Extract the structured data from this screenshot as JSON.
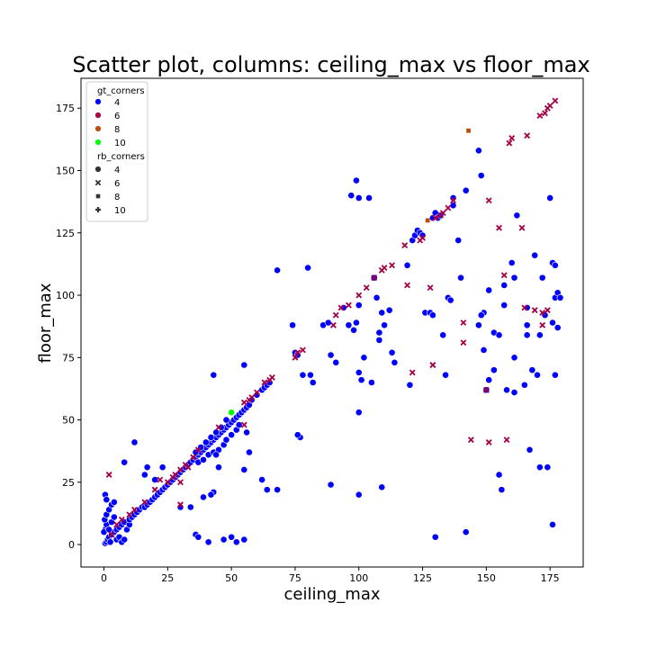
{
  "chart_data": {
    "type": "scatter",
    "title": "Scatter plot, columns: ceiling_max vs floor_max",
    "xlabel": "ceiling_max",
    "ylabel": "floor_max",
    "xlim": [
      -9,
      188
    ],
    "ylim": [
      -9,
      187
    ],
    "xticks": [
      0,
      25,
      50,
      75,
      100,
      125,
      150,
      175
    ],
    "yticks": [
      0,
      25,
      50,
      75,
      100,
      125,
      150,
      175
    ],
    "grid": false,
    "legend": {
      "placement": "top-left",
      "hue_title": "gt_corners",
      "hue_entries": [
        {
          "label": "4",
          "color": "#0000ff"
        },
        {
          "label": "6",
          "color": "#a50045"
        },
        {
          "label": "8",
          "color": "#b8500f"
        },
        {
          "label": "10",
          "color": "#00ff00"
        }
      ],
      "style_title": "rb_corners",
      "style_entries": [
        {
          "label": "4",
          "marker": "circle"
        },
        {
          "label": "6",
          "marker": "x"
        },
        {
          "label": "8",
          "marker": "square"
        },
        {
          "label": "10",
          "marker": "plus"
        }
      ]
    },
    "series": [
      {
        "name": "4",
        "gt_corners": "4",
        "rb_corners": "4",
        "color": "#0000ff",
        "marker": "circle",
        "points": [
          [
            0.5,
            0.5
          ],
          [
            1,
            1
          ],
          [
            1.5,
            2
          ],
          [
            2,
            3
          ],
          [
            2.5,
            1
          ],
          [
            3,
            4
          ],
          [
            0.5,
            6
          ],
          [
            1,
            8
          ],
          [
            0.3,
            10
          ],
          [
            1,
            12
          ],
          [
            2,
            14
          ],
          [
            3,
            16
          ],
          [
            4,
            17
          ],
          [
            0.5,
            20
          ],
          [
            1,
            18
          ],
          [
            0,
            5
          ],
          [
            4,
            5
          ],
          [
            5,
            6
          ],
          [
            6,
            7
          ],
          [
            7,
            8
          ],
          [
            8,
            9
          ],
          [
            5,
            2
          ],
          [
            6,
            3
          ],
          [
            7,
            1
          ],
          [
            8,
            2
          ],
          [
            3,
            9
          ],
          [
            4,
            11
          ],
          [
            2,
            6
          ],
          [
            9,
            6
          ],
          [
            10,
            8
          ],
          [
            10,
            10
          ],
          [
            11,
            11
          ],
          [
            12,
            12
          ],
          [
            13,
            13
          ],
          [
            14,
            14
          ],
          [
            15,
            15
          ],
          [
            16,
            15
          ],
          [
            17,
            16
          ],
          [
            18,
            17
          ],
          [
            19,
            18
          ],
          [
            20,
            19
          ],
          [
            21,
            20
          ],
          [
            22,
            21
          ],
          [
            23,
            22
          ],
          [
            24,
            23
          ],
          [
            25,
            24
          ],
          [
            26,
            25
          ],
          [
            27,
            26
          ],
          [
            28,
            27
          ],
          [
            29,
            28
          ],
          [
            30,
            29
          ],
          [
            31,
            30
          ],
          [
            32,
            31
          ],
          [
            33,
            32
          ],
          [
            34,
            33
          ],
          [
            35,
            34
          ],
          [
            36,
            35
          ],
          [
            37,
            36
          ],
          [
            38,
            37
          ],
          [
            39,
            38
          ],
          [
            40,
            39
          ],
          [
            41,
            40
          ],
          [
            42,
            41
          ],
          [
            43,
            42
          ],
          [
            44,
            43
          ],
          [
            45,
            44
          ],
          [
            46,
            45
          ],
          [
            47,
            46
          ],
          [
            48,
            47
          ],
          [
            49,
            48
          ],
          [
            50,
            49
          ],
          [
            51,
            50
          ],
          [
            52,
            51
          ],
          [
            53,
            52
          ],
          [
            54,
            53
          ],
          [
            55,
            54
          ],
          [
            56,
            55
          ],
          [
            57,
            56
          ],
          [
            36,
            37
          ],
          [
            38,
            39
          ],
          [
            40,
            41
          ],
          [
            42,
            43
          ],
          [
            44,
            45
          ],
          [
            46,
            47
          ],
          [
            48,
            50
          ],
          [
            37,
            33
          ],
          [
            39,
            34
          ],
          [
            41,
            36
          ],
          [
            43,
            37
          ],
          [
            45,
            38
          ],
          [
            47,
            40
          ],
          [
            48,
            42
          ],
          [
            50,
            44
          ],
          [
            52,
            46
          ],
          [
            53,
            48
          ],
          [
            58,
            58
          ],
          [
            60,
            60
          ],
          [
            62,
            62
          ],
          [
            63,
            63
          ],
          [
            64,
            64
          ],
          [
            65,
            65
          ],
          [
            12,
            41
          ],
          [
            8,
            33
          ],
          [
            17,
            31
          ],
          [
            23,
            31
          ],
          [
            16,
            28
          ],
          [
            20,
            26
          ],
          [
            30,
            15
          ],
          [
            34,
            15
          ],
          [
            36,
            4
          ],
          [
            37,
            3
          ],
          [
            41,
            1
          ],
          [
            43,
            21
          ],
          [
            39,
            19
          ],
          [
            42,
            20
          ],
          [
            47,
            2
          ],
          [
            50,
            3
          ],
          [
            52,
            1
          ],
          [
            43,
            68
          ],
          [
            44,
            36
          ],
          [
            45,
            31
          ],
          [
            55,
            72
          ],
          [
            55,
            30
          ],
          [
            56,
            45
          ],
          [
            57,
            37
          ],
          [
            62,
            26
          ],
          [
            64,
            22
          ],
          [
            68,
            22
          ],
          [
            55,
            2
          ],
          [
            68,
            110
          ],
          [
            74,
            88
          ],
          [
            75,
            77
          ],
          [
            76,
            76
          ],
          [
            77,
            43
          ],
          [
            78,
            68
          ],
          [
            81,
            68
          ],
          [
            80,
            111
          ],
          [
            82,
            65
          ],
          [
            76,
            44
          ],
          [
            86,
            88
          ],
          [
            88,
            89
          ],
          [
            89,
            76
          ],
          [
            91,
            73
          ],
          [
            94,
            95
          ],
          [
            96,
            88
          ],
          [
            98,
            86
          ],
          [
            99,
            89
          ],
          [
            100,
            53
          ],
          [
            100,
            96
          ],
          [
            97,
            140
          ],
          [
            99,
            146
          ],
          [
            100,
            139
          ],
          [
            104,
            139
          ],
          [
            100,
            69
          ],
          [
            101,
            66
          ],
          [
            102,
            75
          ],
          [
            105,
            65
          ],
          [
            106,
            107
          ],
          [
            107,
            99
          ],
          [
            108,
            85
          ],
          [
            108,
            82
          ],
          [
            109,
            93
          ],
          [
            110,
            88
          ],
          [
            112,
            94
          ],
          [
            113,
            77
          ],
          [
            114,
            73
          ],
          [
            119,
            112
          ],
          [
            120,
            64
          ],
          [
            121,
            122
          ],
          [
            122,
            124
          ],
          [
            123,
            126
          ],
          [
            124,
            125
          ],
          [
            125,
            124
          ],
          [
            126,
            93
          ],
          [
            128,
            93
          ],
          [
            129,
            92
          ],
          [
            129,
            131
          ],
          [
            130,
            133
          ],
          [
            131,
            131
          ],
          [
            132,
            132
          ],
          [
            133,
            84
          ],
          [
            134,
            68
          ],
          [
            135,
            99
          ],
          [
            136,
            98
          ],
          [
            137,
            136
          ],
          [
            137,
            139
          ],
          [
            139,
            122
          ],
          [
            140,
            107
          ],
          [
            142,
            142
          ],
          [
            147,
            158
          ],
          [
            148,
            148
          ],
          [
            150,
            62
          ],
          [
            151,
            66
          ],
          [
            153,
            85
          ],
          [
            149,
            93
          ],
          [
            149,
            78
          ],
          [
            147,
            88
          ],
          [
            148,
            92
          ],
          [
            151,
            102
          ],
          [
            153,
            70
          ],
          [
            155,
            84
          ],
          [
            157,
            104
          ],
          [
            157,
            96
          ],
          [
            158,
            62
          ],
          [
            160,
            113
          ],
          [
            161,
            107
          ],
          [
            161,
            61
          ],
          [
            161,
            75
          ],
          [
            162,
            132
          ],
          [
            165,
            64
          ],
          [
            166,
            95
          ],
          [
            166,
            84
          ],
          [
            166,
            88
          ],
          [
            168,
            70
          ],
          [
            169,
            116
          ],
          [
            170,
            68
          ],
          [
            171,
            84
          ],
          [
            172,
            107
          ],
          [
            173,
            92
          ],
          [
            175,
            139
          ],
          [
            176,
            113
          ],
          [
            176,
            89
          ],
          [
            177,
            68
          ],
          [
            177,
            99
          ],
          [
            177,
            112
          ],
          [
            178,
            87
          ],
          [
            178,
            101
          ],
          [
            179,
            99
          ],
          [
            174,
            31
          ],
          [
            171,
            31
          ],
          [
            167,
            38
          ],
          [
            176,
            8
          ],
          [
            156,
            22
          ],
          [
            155,
            28
          ],
          [
            142,
            5
          ],
          [
            130,
            3
          ],
          [
            109,
            23
          ],
          [
            100,
            20
          ],
          [
            89,
            24
          ]
        ]
      },
      {
        "name": "6",
        "gt_corners": "6",
        "rb_corners": "6",
        "color": "#a50045",
        "marker": "x",
        "points": [
          [
            2,
            28
          ],
          [
            5,
            8
          ],
          [
            7,
            10
          ],
          [
            3,
            4
          ],
          [
            10,
            12
          ],
          [
            12,
            14
          ],
          [
            16,
            17
          ],
          [
            20,
            22
          ],
          [
            22,
            26
          ],
          [
            25,
            25
          ],
          [
            27,
            27
          ],
          [
            28,
            28
          ],
          [
            30,
            30
          ],
          [
            32,
            32
          ],
          [
            33,
            31
          ],
          [
            35,
            35
          ],
          [
            37,
            38
          ],
          [
            30,
            16
          ],
          [
            30,
            25
          ],
          [
            45,
            47
          ],
          [
            55,
            57
          ],
          [
            55,
            48
          ],
          [
            57,
            58
          ],
          [
            58,
            59
          ],
          [
            60,
            61
          ],
          [
            63,
            65
          ],
          [
            65,
            66
          ],
          [
            66,
            67
          ],
          [
            75,
            75
          ],
          [
            76,
            77
          ],
          [
            78,
            78
          ],
          [
            90,
            88
          ],
          [
            91,
            92
          ],
          [
            93,
            95
          ],
          [
            96,
            96
          ],
          [
            100,
            100
          ],
          [
            103,
            103
          ],
          [
            106,
            107
          ],
          [
            109,
            110
          ],
          [
            110,
            111
          ],
          [
            113,
            112
          ],
          [
            118,
            120
          ],
          [
            119,
            104
          ],
          [
            121,
            69
          ],
          [
            124,
            122
          ],
          [
            125,
            123
          ],
          [
            128,
            103
          ],
          [
            129,
            72
          ],
          [
            130,
            131
          ],
          [
            132,
            132
          ],
          [
            133,
            133
          ],
          [
            135,
            135
          ],
          [
            137,
            138
          ],
          [
            141,
            89
          ],
          [
            141,
            81
          ],
          [
            144,
            42
          ],
          [
            150,
            62
          ],
          [
            151,
            41
          ],
          [
            151,
            138
          ],
          [
            155,
            127
          ],
          [
            157,
            108
          ],
          [
            158,
            42
          ],
          [
            159,
            161
          ],
          [
            160,
            163
          ],
          [
            164,
            127
          ],
          [
            165,
            95
          ],
          [
            166,
            164
          ],
          [
            169,
            94
          ],
          [
            171,
            172
          ],
          [
            172,
            93
          ],
          [
            174,
            94
          ],
          [
            174,
            175
          ],
          [
            175,
            176
          ],
          [
            177,
            178
          ],
          [
            173,
            173
          ],
          [
            172,
            88
          ],
          [
            129,
            72
          ]
        ]
      },
      {
        "name": "8",
        "gt_corners": "8",
        "rb_corners": "8",
        "color": "#b8500f",
        "marker": "square",
        "points": [
          [
            143,
            166
          ],
          [
            127,
            130
          ]
        ]
      },
      {
        "name": "10",
        "gt_corners": "10",
        "rb_corners": "4",
        "color": "#00ff00",
        "marker": "circle",
        "points": [
          [
            50,
            53
          ]
        ]
      }
    ]
  }
}
